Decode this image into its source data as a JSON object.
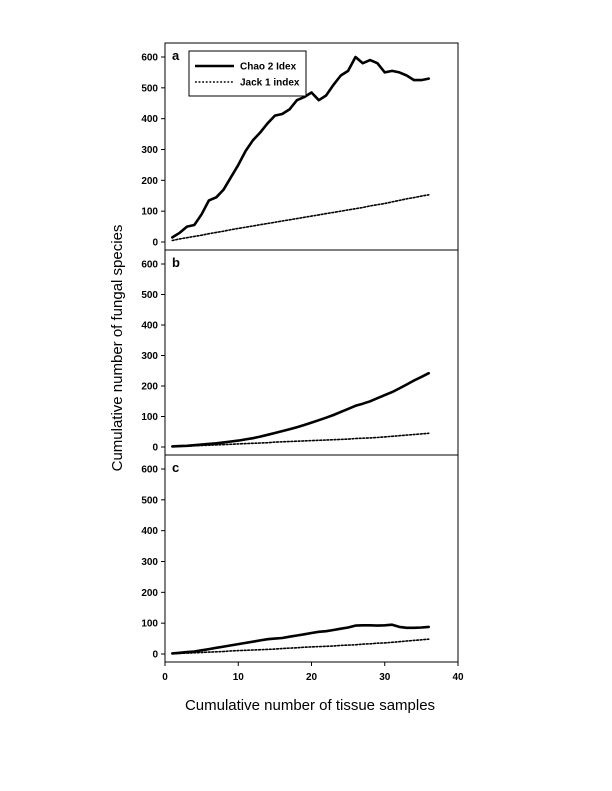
{
  "chart_data": {
    "type": "line",
    "xlabel": "Cumulative number of tissue samples",
    "ylabel": "Cumulative number of fungal species",
    "xlim": [
      0,
      40
    ],
    "xticks": [
      0,
      10,
      20,
      30,
      40
    ],
    "ylim": [
      0,
      600
    ],
    "yticks": [
      0,
      100,
      200,
      300,
      400,
      500,
      600
    ],
    "legend": {
      "placement": "top-left",
      "entries": [
        {
          "name": "Chao 2 Idex",
          "style": "solid"
        },
        {
          "name": "Jack 1 index",
          "style": "dotted"
        }
      ]
    },
    "panels": [
      {
        "label": "a",
        "series": [
          {
            "name": "Chao 2 Idex",
            "x": [
              1,
              2,
              3,
              4,
              5,
              6,
              7,
              8,
              9,
              10,
              11,
              12,
              13,
              14,
              15,
              16,
              17,
              18,
              19,
              20,
              21,
              22,
              23,
              24,
              25,
              26,
              27,
              28,
              29,
              30,
              31,
              32,
              33,
              34,
              35,
              36
            ],
            "values": [
              15,
              30,
              50,
              55,
              90,
              135,
              145,
              170,
              210,
              250,
              295,
              330,
              355,
              385,
              410,
              415,
              430,
              460,
              470,
              485,
              460,
              475,
              510,
              540,
              555,
              600,
              580,
              590,
              580,
              550,
              555,
              550,
              540,
              525,
              525,
              530
            ]
          },
          {
            "name": "Jack 1 index",
            "x": [
              1,
              2,
              3,
              4,
              5,
              6,
              7,
              8,
              9,
              10,
              11,
              12,
              13,
              14,
              15,
              16,
              17,
              18,
              19,
              20,
              21,
              22,
              23,
              24,
              25,
              26,
              27,
              28,
              29,
              30,
              31,
              32,
              33,
              34,
              35,
              36
            ],
            "values": [
              5,
              10,
              14,
              18,
              22,
              27,
              31,
              35,
              40,
              44,
              48,
              52,
              56,
              60,
              64,
              68,
              72,
              76,
              80,
              84,
              88,
              92,
              96,
              100,
              104,
              108,
              112,
              117,
              121,
              125,
              130,
              135,
              140,
              144,
              149,
              153
            ]
          }
        ]
      },
      {
        "label": "b",
        "series": [
          {
            "name": "Chao 2 Idex",
            "x": [
              1,
              2,
              3,
              4,
              5,
              6,
              7,
              8,
              9,
              10,
              11,
              12,
              13,
              14,
              15,
              16,
              17,
              18,
              19,
              20,
              21,
              22,
              23,
              24,
              25,
              26,
              27,
              28,
              29,
              30,
              31,
              32,
              33,
              34,
              35,
              36
            ],
            "values": [
              2,
              3,
              4,
              6,
              8,
              10,
              12,
              15,
              18,
              21,
              25,
              29,
              34,
              40,
              46,
              52,
              58,
              65,
              72,
              80,
              88,
              96,
              105,
              115,
              125,
              135,
              142,
              150,
              160,
              170,
              180,
              192,
              205,
              218,
              230,
              242
            ]
          },
          {
            "name": "Jack 1 index",
            "x": [
              1,
              2,
              3,
              4,
              5,
              6,
              7,
              8,
              9,
              10,
              11,
              12,
              13,
              14,
              15,
              16,
              17,
              18,
              19,
              20,
              21,
              22,
              23,
              24,
              25,
              26,
              27,
              28,
              29,
              30,
              31,
              32,
              33,
              34,
              35,
              36
            ],
            "values": [
              1,
              2,
              3,
              4,
              5,
              6,
              7,
              8,
              9,
              10,
              11,
              12,
              13,
              14,
              16,
              17,
              18,
              19,
              20,
              21,
              22,
              23,
              24,
              25,
              26,
              28,
              29,
              30,
              31,
              33,
              35,
              37,
              39,
              41,
              43,
              45
            ]
          }
        ]
      },
      {
        "label": "c",
        "series": [
          {
            "name": "Chao 2 Idex",
            "x": [
              1,
              2,
              3,
              4,
              5,
              6,
              7,
              8,
              9,
              10,
              11,
              12,
              13,
              14,
              15,
              16,
              17,
              18,
              19,
              20,
              21,
              22,
              23,
              24,
              25,
              26,
              27,
              28,
              29,
              30,
              31,
              32,
              33,
              34,
              35,
              36
            ],
            "values": [
              2,
              4,
              6,
              8,
              12,
              16,
              20,
              24,
              28,
              32,
              36,
              40,
              44,
              48,
              50,
              52,
              56,
              60,
              64,
              68,
              72,
              74,
              78,
              82,
              86,
              92,
              93,
              93,
              92,
              93,
              95,
              88,
              85,
              85,
              86,
              88
            ]
          },
          {
            "name": "Jack 1 index",
            "x": [
              1,
              2,
              3,
              4,
              5,
              6,
              7,
              8,
              9,
              10,
              11,
              12,
              13,
              14,
              15,
              16,
              17,
              18,
              19,
              20,
              21,
              22,
              23,
              24,
              25,
              26,
              27,
              28,
              29,
              30,
              31,
              32,
              33,
              34,
              35,
              36
            ],
            "values": [
              1,
              2,
              3,
              4,
              5,
              6,
              7,
              8,
              10,
              11,
              12,
              13,
              14,
              15,
              16,
              18,
              19,
              20,
              22,
              23,
              24,
              25,
              26,
              28,
              29,
              30,
              32,
              33,
              35,
              36,
              38,
              40,
              42,
              44,
              46,
              48
            ]
          }
        ]
      }
    ]
  }
}
